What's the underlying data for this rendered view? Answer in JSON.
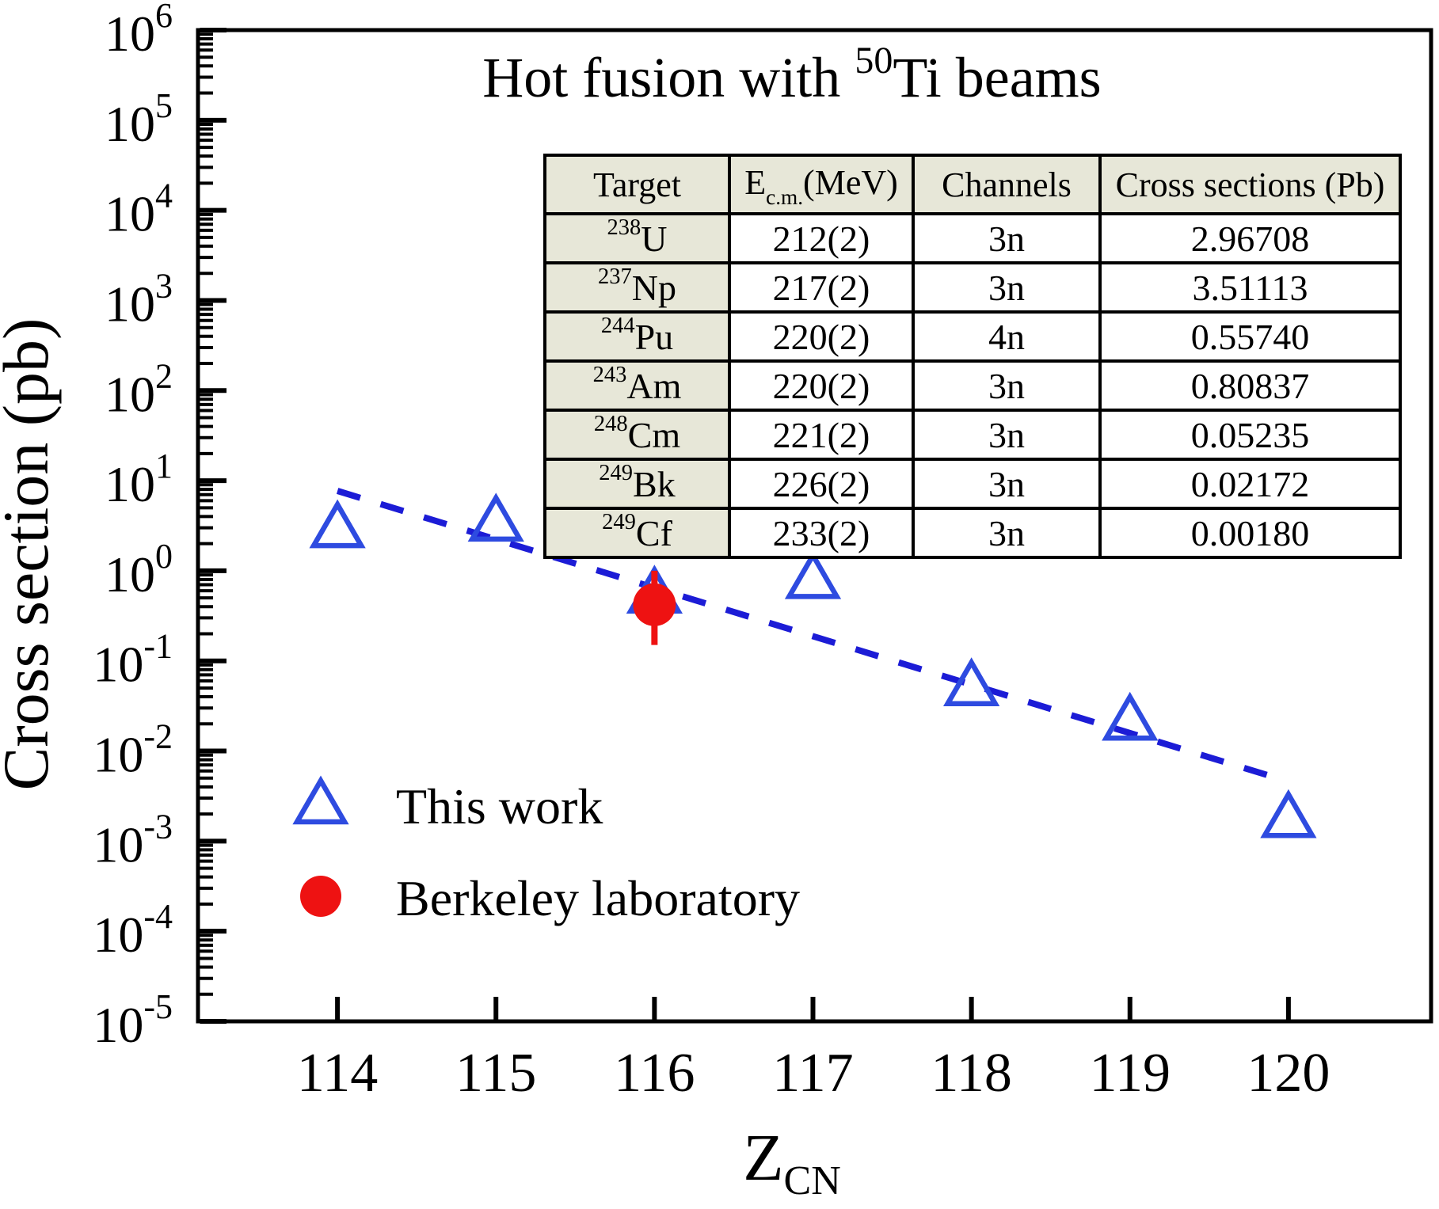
{
  "title": {
    "pre": "Hot fusion with ",
    "sup": "50",
    "post": "Ti beams"
  },
  "y_axis": {
    "label": "Cross section (pb)",
    "base": "10",
    "tick_exponents": [
      6,
      5,
      4,
      3,
      2,
      1,
      0,
      -1,
      -2,
      -3,
      -4,
      -5
    ]
  },
  "x_axis": {
    "label_main": "Z",
    "label_sub": "CN",
    "ticks": [
      "114",
      "115",
      "116",
      "117",
      "118",
      "119",
      "120"
    ]
  },
  "legend": {
    "items": [
      {
        "marker": "open-triangle",
        "color": "#2e4be0",
        "label": "This work"
      },
      {
        "marker": "filled-circle",
        "color": "#ee1212",
        "label": "Berkeley laboratory"
      }
    ]
  },
  "data_table": {
    "headers": {
      "target": "Target",
      "ecm_pre": "E",
      "ecm_sub": "c.m.",
      "ecm_post": "(MeV)",
      "channels": "Channels",
      "cross_sections": "Cross sections (Pb)"
    },
    "rows": [
      {
        "mass": "238",
        "element": "U",
        "ecm": "212(2)",
        "channel": "3n",
        "cross_section": "2.96708"
      },
      {
        "mass": "237",
        "element": "Np",
        "ecm": "217(2)",
        "channel": "3n",
        "cross_section": "3.51113"
      },
      {
        "mass": "244",
        "element": "Pu",
        "ecm": "220(2)",
        "channel": "4n",
        "cross_section": "0.55740"
      },
      {
        "mass": "243",
        "element": "Am",
        "ecm": "220(2)",
        "channel": "3n",
        "cross_section": "0.80837"
      },
      {
        "mass": "248",
        "element": "Cm",
        "ecm": "221(2)",
        "channel": "3n",
        "cross_section": "0.05235"
      },
      {
        "mass": "249",
        "element": "Bk",
        "ecm": "226(2)",
        "channel": "3n",
        "cross_section": "0.02172"
      },
      {
        "mass": "249",
        "element": "Cf",
        "ecm": "233(2)",
        "channel": "3n",
        "cross_section": "0.00180"
      }
    ],
    "style": {
      "header_bg": "#e7e7d8",
      "border_color": "#000000"
    }
  },
  "chart_data": {
    "type": "scatter",
    "title": "Hot fusion with 50Ti beams",
    "xlabel": "Z_CN",
    "ylabel": "Cross section (pb)",
    "x_range": [
      113.12,
      120.9
    ],
    "y_log_range": [
      -5,
      6
    ],
    "x_ticks": [
      114,
      115,
      116,
      117,
      118,
      119,
      120
    ],
    "grid": false,
    "series": [
      {
        "name": "This work",
        "marker": "open-triangle",
        "color": "#2e4be0",
        "points": [
          [
            114,
            2.96708
          ],
          [
            115,
            3.51113
          ],
          [
            116,
            0.5574
          ],
          [
            117,
            0.80837
          ],
          [
            118,
            0.05235
          ],
          [
            119,
            0.02172
          ],
          [
            120,
            0.0018
          ]
        ]
      },
      {
        "name": "Berkeley laboratory",
        "marker": "filled-circle",
        "color": "#ee1212",
        "points": [
          [
            116,
            0.42
          ]
        ],
        "y_err": [
          [
            0.15,
            1.0
          ]
        ]
      }
    ],
    "trend_line": {
      "style": "dashed",
      "color": "#1c1cd6",
      "x1": 114.0,
      "y1": 7.7,
      "x2": 119.93,
      "y2": 0.005
    }
  }
}
